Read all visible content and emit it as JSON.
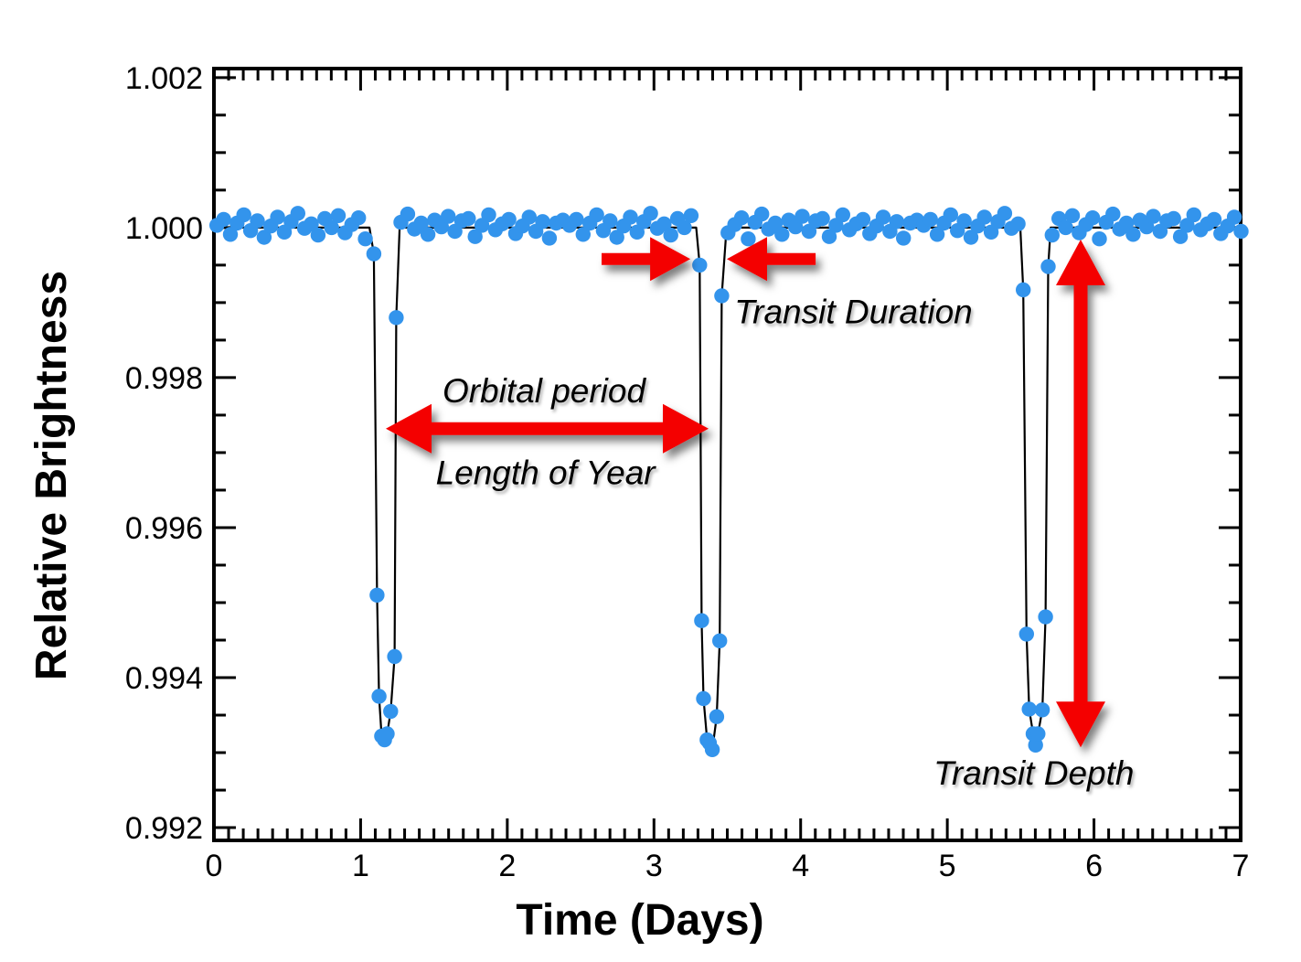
{
  "chart_data": {
    "type": "scatter",
    "xlabel": "Time (Days)",
    "ylabel": "Relative  Brightness",
    "xlim": [
      0,
      7
    ],
    "ylim": [
      0.99183,
      1.00212
    ],
    "x_major_ticks": [
      0,
      1,
      2,
      3,
      4,
      5,
      6,
      7
    ],
    "x_tick_labels": [
      "0",
      "1",
      "2",
      "3",
      "4",
      "5",
      "6",
      "7"
    ],
    "x_minor_step": 0.1,
    "y_major_ticks": [
      0.992,
      0.994,
      0.996,
      0.998,
      1.0,
      1.002
    ],
    "y_tick_labels": [
      "0.992",
      "0.994",
      "0.996",
      "0.998",
      "1.000",
      "1.002"
    ],
    "y_minor_step": 0.0005,
    "grid": false,
    "legend": null,
    "point_color": "#3394EC",
    "line_color": "#000000",
    "arrow_color": "#F40000",
    "baseline": {
      "level": 1.0,
      "noise_amplitude": 0.0002,
      "x_step": 0.046,
      "segments": [
        [
          0.02,
          1.045
        ],
        [
          1.275,
          3.275
        ],
        [
          3.505,
          5.49
        ],
        [
          5.715,
          6.99
        ]
      ],
      "jitter_pattern_1e4": [
        0.3,
        1.1,
        -0.9,
        0.6,
        1.7,
        -0.4,
        0.9,
        -1.3,
        0.2,
        1.4,
        -0.6,
        0.8,
        1.9,
        -0.1,
        0.5,
        -1.0,
        1.2,
        0.0,
        1.6,
        -0.7,
        0.4,
        1.3,
        -1.5,
        0.7,
        1.8,
        -0.2,
        0.6,
        -0.9,
        1.0,
        0.1,
        1.5,
        -0.5,
        0.9,
        1.2,
        -1.2,
        0.3,
        1.7,
        -0.3,
        0.5,
        1.1,
        -0.8,
        0.2,
        1.4,
        -0.5,
        0.8,
        -1.4,
        0.6,
        1.0
      ]
    },
    "transits": [
      {
        "center": 1.165,
        "enter_x": 1.06,
        "exit_x": 1.266,
        "points": [
          [
            1.09,
            0.99965
          ],
          [
            1.112,
            0.9951
          ],
          [
            1.126,
            0.99375
          ],
          [
            1.143,
            0.99322
          ],
          [
            1.163,
            0.99317
          ],
          [
            1.181,
            0.99325
          ],
          [
            1.205,
            0.99355
          ],
          [
            1.232,
            0.99428
          ],
          [
            1.243,
            0.9988
          ]
        ]
      },
      {
        "center": 3.39,
        "enter_x": 3.288,
        "exit_x": 3.495,
        "points": [
          [
            3.312,
            0.9995
          ],
          [
            3.325,
            0.99476
          ],
          [
            3.338,
            0.99372
          ],
          [
            3.362,
            0.99317
          ],
          [
            3.378,
            0.99313
          ],
          [
            3.398,
            0.99304
          ],
          [
            3.428,
            0.99348
          ],
          [
            3.448,
            0.99449
          ],
          [
            3.462,
            0.99909
          ]
        ]
      },
      {
        "center": 5.6,
        "enter_x": 5.498,
        "exit_x": 5.705,
        "points": [
          [
            5.518,
            0.99917
          ],
          [
            5.54,
            0.99458
          ],
          [
            5.558,
            0.99358
          ],
          [
            5.585,
            0.99325
          ],
          [
            5.602,
            0.9931
          ],
          [
            5.618,
            0.99325
          ],
          [
            5.648,
            0.99357
          ],
          [
            5.67,
            0.99481
          ],
          [
            5.688,
            0.99948
          ]
        ]
      }
    ],
    "period_days": 2.22,
    "transit_depth": 0.0068,
    "transit_duration_days": 0.21,
    "annotations": [
      {
        "id": "transit-duration-label",
        "text": "Transit Duration",
        "x": 4.36,
        "y": 0.99888
      },
      {
        "id": "orbital-period-label",
        "text": "Orbital period",
        "x": 2.25,
        "y": 0.99783
      },
      {
        "id": "length-of-year-label",
        "text": "Length of Year",
        "x": 2.26,
        "y": 0.99674
      },
      {
        "id": "transit-depth-label",
        "text": "Transit Depth",
        "x": 5.59,
        "y": 0.99273
      }
    ],
    "arrows": [
      {
        "id": "duration-arrow-left",
        "x1": 2.643,
        "y1": 0.99958,
        "x2": 3.248,
        "y2": 0.99958,
        "heads": "end",
        "shaft": 13,
        "head_len": 44,
        "head_half": 24
      },
      {
        "id": "duration-arrow-right",
        "x1": 4.102,
        "y1": 0.99958,
        "x2": 3.497,
        "y2": 0.99958,
        "heads": "end",
        "shaft": 13,
        "head_len": 44,
        "head_half": 24
      },
      {
        "id": "orbital-period-arrow",
        "x1": 1.172,
        "y1": 0.99732,
        "x2": 3.372,
        "y2": 0.99732,
        "heads": "both",
        "shaft": 14,
        "head_len": 50,
        "head_half": 27
      },
      {
        "id": "transit-depth-arrow",
        "x1": 5.909,
        "y1": 0.99984,
        "x2": 5.909,
        "y2": 0.99307,
        "heads": "both",
        "shaft": 15,
        "head_len": 50,
        "head_half": 27
      }
    ]
  }
}
